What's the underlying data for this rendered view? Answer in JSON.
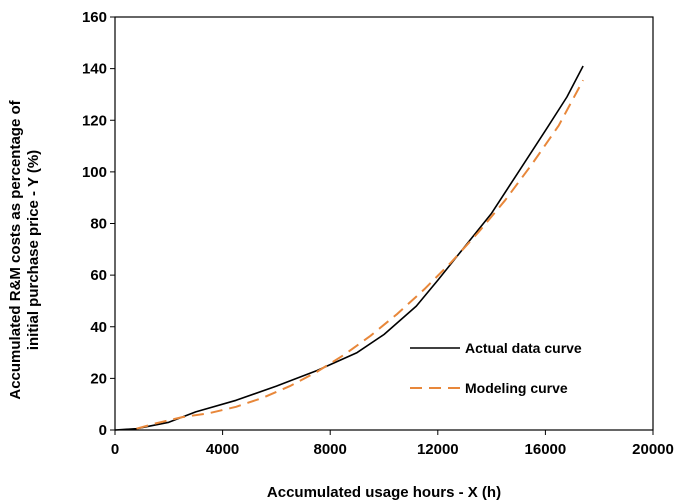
{
  "chart_data": {
    "type": "line",
    "xlabel": "Accumulated usage hours - X (h)",
    "ylabel_lines": [
      "Accumulated R&M costs as percentage of",
      "initial purchase price - Y (%)"
    ],
    "xlim": [
      0,
      20000
    ],
    "ylim": [
      0,
      160
    ],
    "xticks": [
      "0",
      "4000",
      "8000",
      "12000",
      "16000",
      "20000"
    ],
    "yticks": [
      "0",
      "20",
      "40",
      "60",
      "80",
      "100",
      "120",
      "140",
      "160"
    ],
    "grid": false,
    "legend_position": "bottom-right",
    "series": [
      {
        "name": "Actual data curve",
        "color": "#000000",
        "style": "solid",
        "x": [
          0,
          800,
          2000,
          3000,
          4500,
          6000,
          7500,
          9000,
          10000,
          11200,
          12000,
          13000,
          14000,
          15000,
          16000,
          16800,
          17400
        ],
        "y": [
          0,
          0.5,
          3,
          7,
          11.5,
          17,
          23,
          30,
          37,
          48,
          58,
          71,
          84,
          100,
          116,
          129,
          141
        ]
      },
      {
        "name": "Modeling curve",
        "color": "#E8873A",
        "style": "dashed",
        "x": [
          800,
          1500,
          2500,
          3500,
          4500,
          5500,
          6500,
          7500,
          8500,
          9500,
          10500,
          11500,
          12500,
          13500,
          14500,
          15500,
          16500,
          17400
        ],
        "y": [
          0.5,
          2.5,
          5,
          6.5,
          9,
          12.5,
          17,
          22.5,
          29,
          36.5,
          45,
          54.5,
          65,
          76.5,
          89,
          103,
          118,
          135.5
        ]
      }
    ]
  }
}
